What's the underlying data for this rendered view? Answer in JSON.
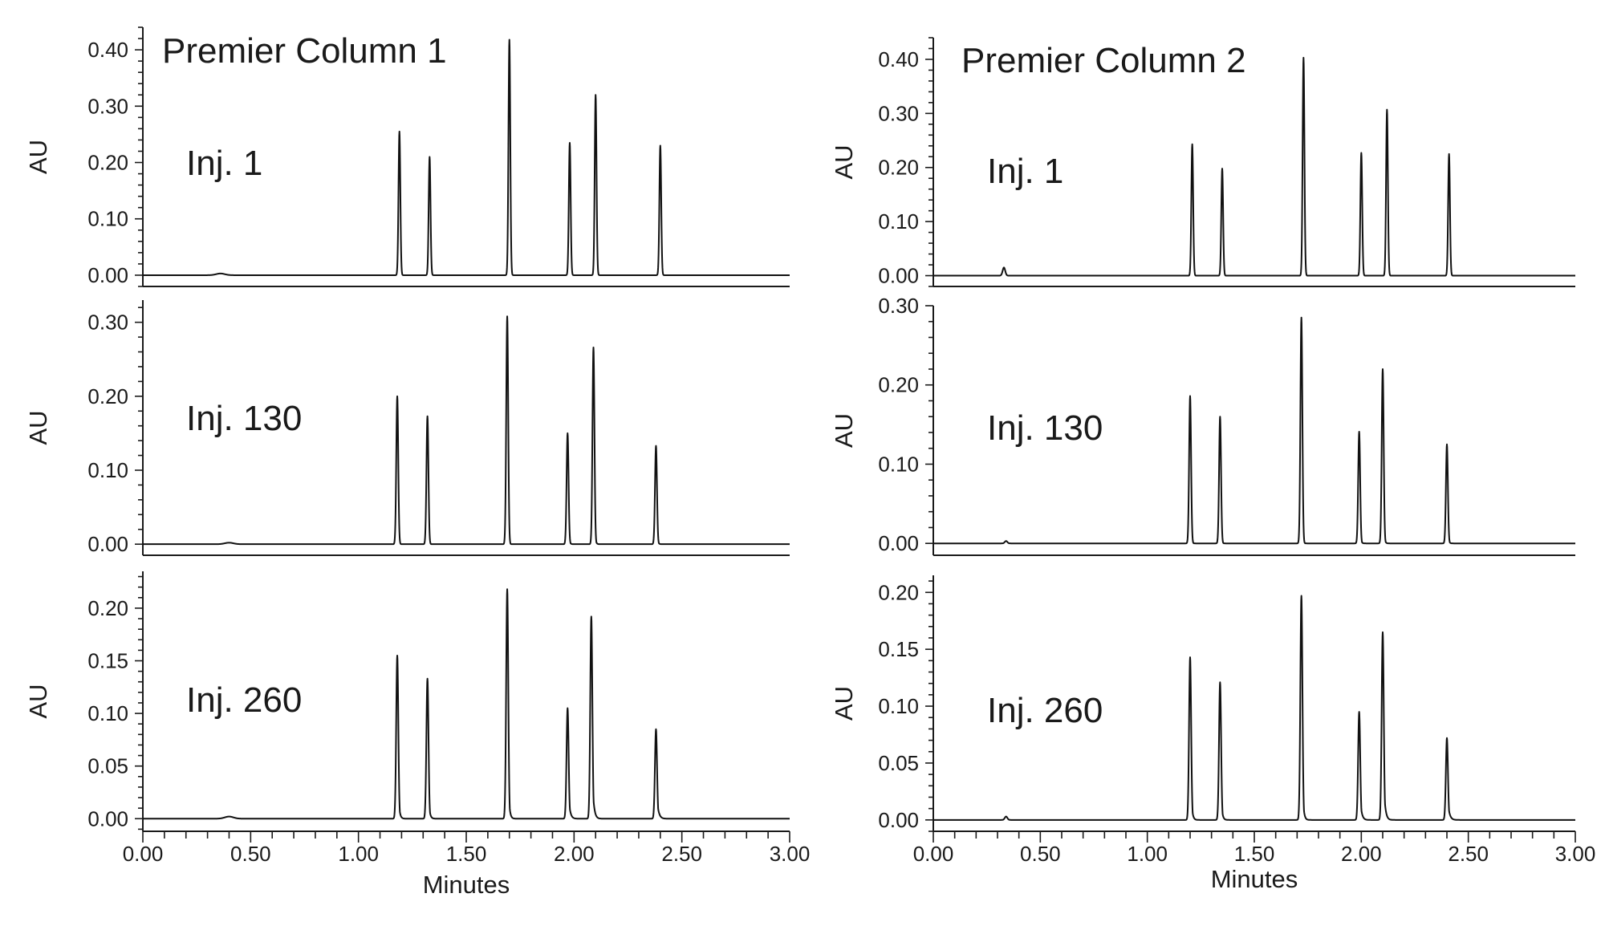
{
  "chart_data": {
    "type": "line",
    "trace_color": "#111111",
    "x_axis": {
      "label": "Minutes",
      "range": [
        0,
        3
      ],
      "major_step": 0.5,
      "minor_step": 0.1,
      "ticks": [
        "0.00",
        "0.50",
        "1.00",
        "1.50",
        "2.00",
        "2.50",
        "3.00"
      ]
    },
    "y_axis_label": "AU",
    "columns": [
      {
        "title": "Premier Column 1",
        "panels": [
          {
            "label": "Inj. 1",
            "ylim": [
              -0.02,
              0.44
            ],
            "ytick_step": 0.1,
            "yticks": [
              "0.00",
              "0.10",
              "0.20",
              "0.30",
              "0.40"
            ],
            "peaks": [
              {
                "rt": 0.36,
                "height": 0.003,
                "sigma": 0.02,
                "tail": 0.0
              },
              {
                "rt": 1.19,
                "height": 0.255,
                "sigma": 0.0042,
                "tail": 0.0
              },
              {
                "rt": 1.33,
                "height": 0.21,
                "sigma": 0.0042,
                "tail": 0.0
              },
              {
                "rt": 1.7,
                "height": 0.418,
                "sigma": 0.0042,
                "tail": 0.0
              },
              {
                "rt": 1.98,
                "height": 0.235,
                "sigma": 0.0042,
                "tail": 0.0
              },
              {
                "rt": 2.1,
                "height": 0.32,
                "sigma": 0.0042,
                "tail": 0.0
              },
              {
                "rt": 2.4,
                "height": 0.23,
                "sigma": 0.0042,
                "tail": 0.0
              }
            ]
          },
          {
            "label": "Inj. 130",
            "ylim": [
              -0.015,
              0.33
            ],
            "ytick_step": 0.1,
            "yticks": [
              "0.00",
              "0.10",
              "0.20",
              "0.30"
            ],
            "peaks": [
              {
                "rt": 0.4,
                "height": 0.002,
                "sigma": 0.02,
                "tail": 0.0
              },
              {
                "rt": 1.18,
                "height": 0.2,
                "sigma": 0.0045,
                "tail": 0.003
              },
              {
                "rt": 1.32,
                "height": 0.173,
                "sigma": 0.0045,
                "tail": 0.003
              },
              {
                "rt": 1.69,
                "height": 0.308,
                "sigma": 0.0045,
                "tail": 0.003
              },
              {
                "rt": 1.97,
                "height": 0.15,
                "sigma": 0.0045,
                "tail": 0.004
              },
              {
                "rt": 2.09,
                "height": 0.266,
                "sigma": 0.0045,
                "tail": 0.004
              },
              {
                "rt": 2.38,
                "height": 0.133,
                "sigma": 0.0045,
                "tail": 0.004
              }
            ]
          },
          {
            "label": "Inj. 260",
            "ylim": [
              -0.012,
              0.235
            ],
            "ytick_step": 0.05,
            "yticks": [
              "0.00",
              "0.05",
              "0.10",
              "0.15",
              "0.20"
            ],
            "peaks": [
              {
                "rt": 0.4,
                "height": 0.002,
                "sigma": 0.02,
                "tail": 0.0
              },
              {
                "rt": 1.18,
                "height": 0.155,
                "sigma": 0.0048,
                "tail": 0.006
              },
              {
                "rt": 1.32,
                "height": 0.133,
                "sigma": 0.0048,
                "tail": 0.006
              },
              {
                "rt": 1.69,
                "height": 0.218,
                "sigma": 0.0048,
                "tail": 0.006
              },
              {
                "rt": 1.97,
                "height": 0.105,
                "sigma": 0.0048,
                "tail": 0.008
              },
              {
                "rt": 2.08,
                "height": 0.192,
                "sigma": 0.0048,
                "tail": 0.008
              },
              {
                "rt": 2.38,
                "height": 0.085,
                "sigma": 0.0048,
                "tail": 0.009
              }
            ]
          }
        ]
      },
      {
        "title": "Premier Column 2",
        "panels": [
          {
            "label": "Inj. 1",
            "ylim": [
              -0.02,
              0.44
            ],
            "ytick_step": 0.1,
            "yticks": [
              "0.00",
              "0.10",
              "0.20",
              "0.30",
              "0.40"
            ],
            "peaks": [
              {
                "rt": 0.33,
                "height": 0.015,
                "sigma": 0.006,
                "tail": 0.0
              },
              {
                "rt": 1.21,
                "height": 0.243,
                "sigma": 0.0042,
                "tail": 0.0
              },
              {
                "rt": 1.35,
                "height": 0.198,
                "sigma": 0.0042,
                "tail": 0.0
              },
              {
                "rt": 1.73,
                "height": 0.403,
                "sigma": 0.0042,
                "tail": 0.0
              },
              {
                "rt": 2.0,
                "height": 0.227,
                "sigma": 0.0042,
                "tail": 0.0
              },
              {
                "rt": 2.12,
                "height": 0.307,
                "sigma": 0.0042,
                "tail": 0.0
              },
              {
                "rt": 2.41,
                "height": 0.225,
                "sigma": 0.0042,
                "tail": 0.0
              }
            ]
          },
          {
            "label": "Inj. 130",
            "ylim": [
              -0.015,
              0.3
            ],
            "ytick_step": 0.1,
            "yticks": [
              "0.00",
              "0.10",
              "0.20",
              "0.30"
            ],
            "peaks": [
              {
                "rt": 0.34,
                "height": 0.003,
                "sigma": 0.006,
                "tail": 0.0
              },
              {
                "rt": 1.2,
                "height": 0.186,
                "sigma": 0.0045,
                "tail": 0.003
              },
              {
                "rt": 1.34,
                "height": 0.16,
                "sigma": 0.0045,
                "tail": 0.003
              },
              {
                "rt": 1.72,
                "height": 0.285,
                "sigma": 0.0045,
                "tail": 0.003
              },
              {
                "rt": 1.99,
                "height": 0.141,
                "sigma": 0.0045,
                "tail": 0.004
              },
              {
                "rt": 2.1,
                "height": 0.22,
                "sigma": 0.0045,
                "tail": 0.004
              },
              {
                "rt": 2.4,
                "height": 0.125,
                "sigma": 0.0045,
                "tail": 0.004
              }
            ]
          },
          {
            "label": "Inj. 260",
            "ylim": [
              -0.01,
              0.215
            ],
            "ytick_step": 0.05,
            "yticks": [
              "0.00",
              "0.05",
              "0.10",
              "0.15",
              "0.20"
            ],
            "peaks": [
              {
                "rt": 0.34,
                "height": 0.003,
                "sigma": 0.006,
                "tail": 0.0
              },
              {
                "rt": 1.2,
                "height": 0.143,
                "sigma": 0.0048,
                "tail": 0.006
              },
              {
                "rt": 1.34,
                "height": 0.121,
                "sigma": 0.0048,
                "tail": 0.006
              },
              {
                "rt": 1.72,
                "height": 0.197,
                "sigma": 0.0048,
                "tail": 0.006
              },
              {
                "rt": 1.99,
                "height": 0.095,
                "sigma": 0.0048,
                "tail": 0.008
              },
              {
                "rt": 2.1,
                "height": 0.165,
                "sigma": 0.0048,
                "tail": 0.008
              },
              {
                "rt": 2.4,
                "height": 0.072,
                "sigma": 0.0048,
                "tail": 0.009
              }
            ]
          }
        ]
      }
    ]
  }
}
